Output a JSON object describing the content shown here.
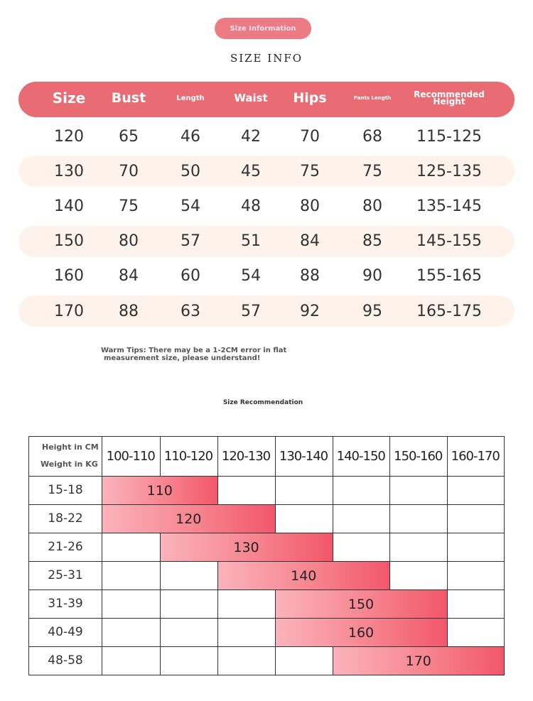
{
  "badge": "Size Information",
  "title": "SIZE INFO",
  "size_table": {
    "columns": [
      "Size",
      "Bust",
      "Length",
      "Waist",
      "Hips",
      "Pants Length",
      "Recommended Height"
    ],
    "rows": [
      [
        120,
        65,
        46,
        42,
        70,
        68,
        "115-125"
      ],
      [
        130,
        70,
        50,
        45,
        75,
        75,
        "125-135"
      ],
      [
        140,
        75,
        54,
        48,
        80,
        80,
        "135-145"
      ],
      [
        150,
        80,
        57,
        51,
        84,
        85,
        "145-155"
      ],
      [
        160,
        84,
        60,
        54,
        88,
        90,
        "155-165"
      ],
      [
        170,
        88,
        63,
        57,
        92,
        95,
        "165-175"
      ]
    ]
  },
  "tip": [
    "Warm Tips: There may be a 1-2CM error in flat",
    "measurement size, please understand!"
  ],
  "recommendation": {
    "title": "Size Recommendation",
    "corner": {
      "height": "Height in CM",
      "weight": "Weight in KG"
    },
    "heights": [
      "100-110",
      "110-120",
      "120-130",
      "130-140",
      "140-150",
      "150-160",
      "160-170"
    ],
    "rows": [
      {
        "weight": "15-18",
        "size": 110
      },
      {
        "weight": "18-22",
        "size": 120
      },
      {
        "weight": "21-26",
        "size": 130
      },
      {
        "weight": "25-31",
        "size": 140
      },
      {
        "weight": "31-39",
        "size": 150
      },
      {
        "weight": "40-49",
        "size": 160
      },
      {
        "weight": "48-58",
        "size": 170
      }
    ]
  }
}
